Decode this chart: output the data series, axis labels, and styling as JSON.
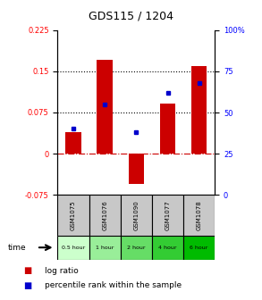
{
  "title": "GDS115 / 1204",
  "categories": [
    "GSM1075",
    "GSM1076",
    "GSM1090",
    "GSM1077",
    "GSM1078"
  ],
  "time_labels": [
    "0.5 hour",
    "1 hour",
    "2 hour",
    "4 hour",
    "6 hour"
  ],
  "time_colors": [
    "#ccffcc",
    "#99ee99",
    "#66dd66",
    "#33cc33",
    "#00bb00"
  ],
  "log_ratios": [
    0.04,
    0.17,
    -0.055,
    0.092,
    0.16
  ],
  "percentile_ranks": [
    40,
    55,
    38,
    62,
    68
  ],
  "bar_color": "#cc0000",
  "dot_color": "#0000cc",
  "ylim_left": [
    -0.075,
    0.225
  ],
  "ylim_right": [
    0,
    100
  ],
  "yticks_left": [
    -0.075,
    0,
    0.075,
    0.15,
    0.225
  ],
  "yticks_right": [
    0,
    25,
    50,
    75,
    100
  ],
  "hline_y": [
    0.075,
    0.15
  ],
  "bar_width": 0.5,
  "background_color": "#ffffff"
}
